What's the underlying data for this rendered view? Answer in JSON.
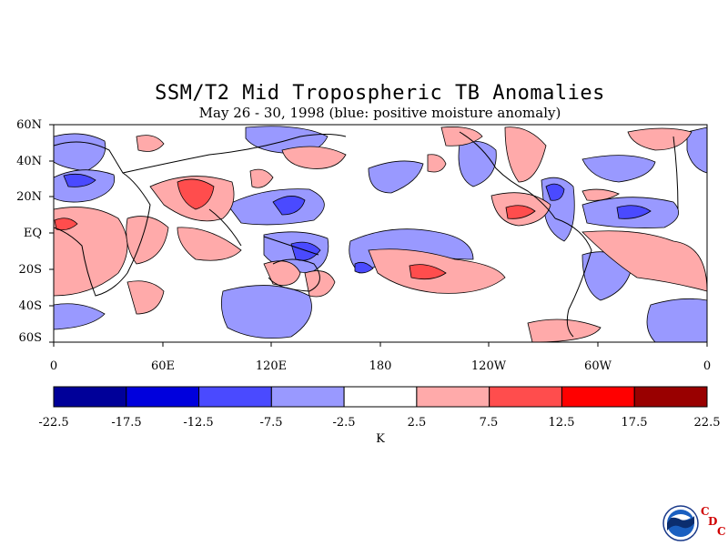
{
  "header": {
    "title": "SSM/T2 Mid Tropospheric TB Anomalies",
    "subtitle": "May 26 - 30, 1998 (blue: positive moisture anomaly)"
  },
  "map": {
    "lat_labels": [
      "60N",
      "40N",
      "20N",
      "EQ",
      "20S",
      "40S",
      "60S"
    ],
    "lon_labels": [
      "0",
      "60E",
      "120E",
      "180",
      "120W",
      "60W",
      "0"
    ]
  },
  "colorbar": {
    "ticks": [
      "-22.5",
      "-17.5",
      "-12.5",
      "-7.5",
      "-2.5",
      "2.5",
      "7.5",
      "12.5",
      "17.5",
      "22.5"
    ],
    "colors": [
      "#000099",
      "#0000dd",
      "#4a4aff",
      "#9999ff",
      "#ffffff",
      "#ffaaaa",
      "#ff4d4d",
      "#ff0000",
      "#990000"
    ],
    "unit": "K"
  },
  "logo": {
    "agency_text": "NOAA",
    "corner_letters": [
      "C",
      "D",
      "C"
    ]
  }
}
